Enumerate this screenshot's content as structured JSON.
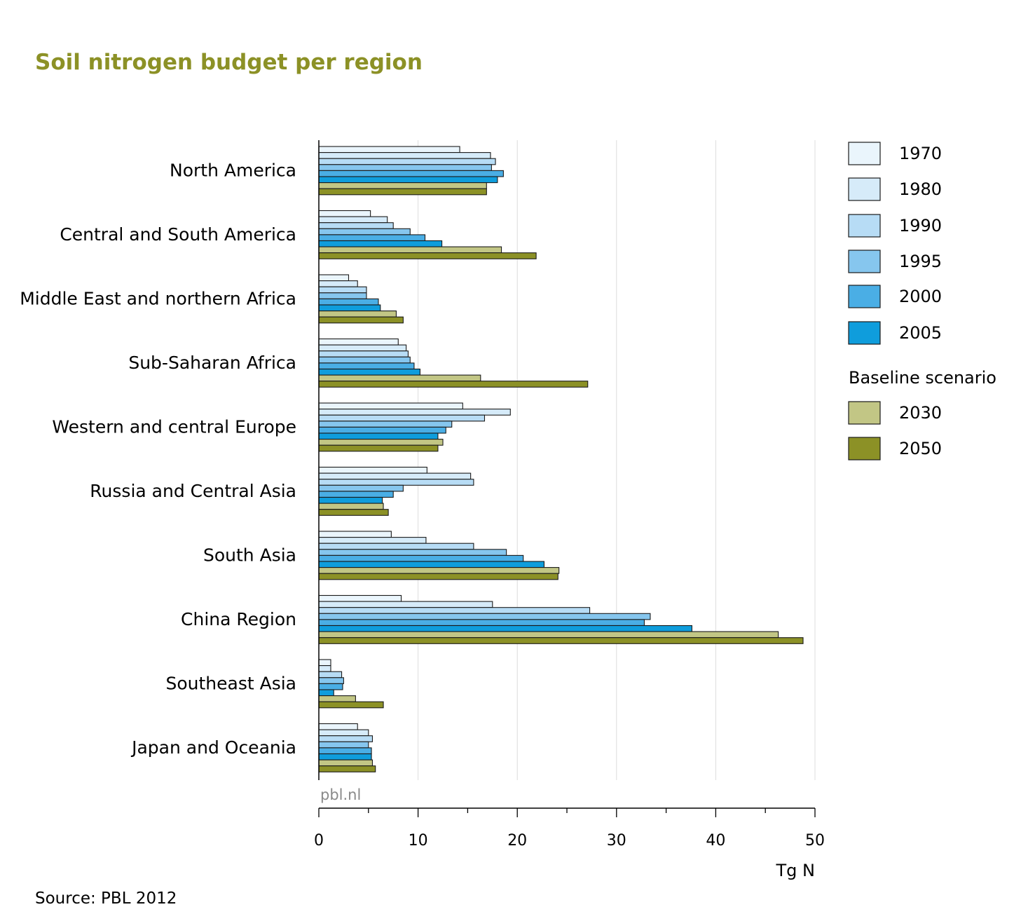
{
  "colors": {
    "title": "#8c9126",
    "grid": "#dcdcdc",
    "axis": "#000000",
    "watermark": "#8a8a8a"
  },
  "chart_data": {
    "type": "bar",
    "orientation": "horizontal",
    "title": "Soil nitrogen budget per region",
    "xlabel": "Tg N",
    "xlim": [
      0,
      50
    ],
    "xticks": [
      0,
      10,
      20,
      30,
      40,
      50
    ],
    "grid": true,
    "legend_position": "right",
    "categories": [
      "North America",
      "Central and South America",
      "Middle East and northern Africa",
      "Sub-Saharan Africa",
      "Western and central Europe",
      "Russia and Central Asia",
      "South Asia",
      "China Region",
      "Southeast Asia",
      "Japan and Oceania"
    ],
    "series": [
      {
        "name": "1970",
        "color": "#eaf5fc",
        "values": [
          14.2,
          5.2,
          3.0,
          8.0,
          14.5,
          10.9,
          7.3,
          8.3,
          1.2,
          3.9
        ]
      },
      {
        "name": "1980",
        "color": "#d6ebf9",
        "values": [
          17.3,
          6.9,
          3.9,
          8.8,
          19.3,
          15.3,
          10.8,
          17.5,
          1.2,
          5.0
        ]
      },
      {
        "name": "1990",
        "color": "#b7dcf5",
        "values": [
          17.8,
          7.5,
          4.8,
          9.0,
          16.7,
          15.6,
          15.6,
          27.3,
          2.3,
          5.4
        ]
      },
      {
        "name": "1995",
        "color": "#86c6ee",
        "values": [
          17.4,
          9.2,
          4.8,
          9.2,
          13.4,
          8.5,
          18.9,
          33.4,
          2.5,
          5.0
        ]
      },
      {
        "name": "2000",
        "color": "#4aaee5",
        "values": [
          18.6,
          10.7,
          6.0,
          9.6,
          12.8,
          7.5,
          20.6,
          32.8,
          2.4,
          5.3
        ]
      },
      {
        "name": "2005",
        "color": "#0f9ddc",
        "values": [
          18.0,
          12.4,
          6.2,
          10.2,
          12.0,
          6.4,
          22.7,
          37.6,
          1.5,
          5.3
        ]
      },
      {
        "name": "2030",
        "color": "#c2c685",
        "values": [
          16.9,
          18.4,
          7.8,
          16.3,
          12.5,
          6.5,
          24.2,
          46.3,
          3.7,
          5.4
        ]
      },
      {
        "name": "2050",
        "color": "#8c9126",
        "values": [
          16.9,
          21.9,
          8.5,
          27.1,
          12.0,
          7.0,
          24.1,
          48.8,
          6.5,
          5.7
        ]
      }
    ],
    "legend": {
      "historic": [
        "1970",
        "1980",
        "1990",
        "1995",
        "2000",
        "2005"
      ],
      "scenario_heading": "Baseline scenario",
      "scenario": [
        "2030",
        "2050"
      ]
    }
  },
  "watermark": "pbl.nl",
  "source": "Source: PBL 2012"
}
